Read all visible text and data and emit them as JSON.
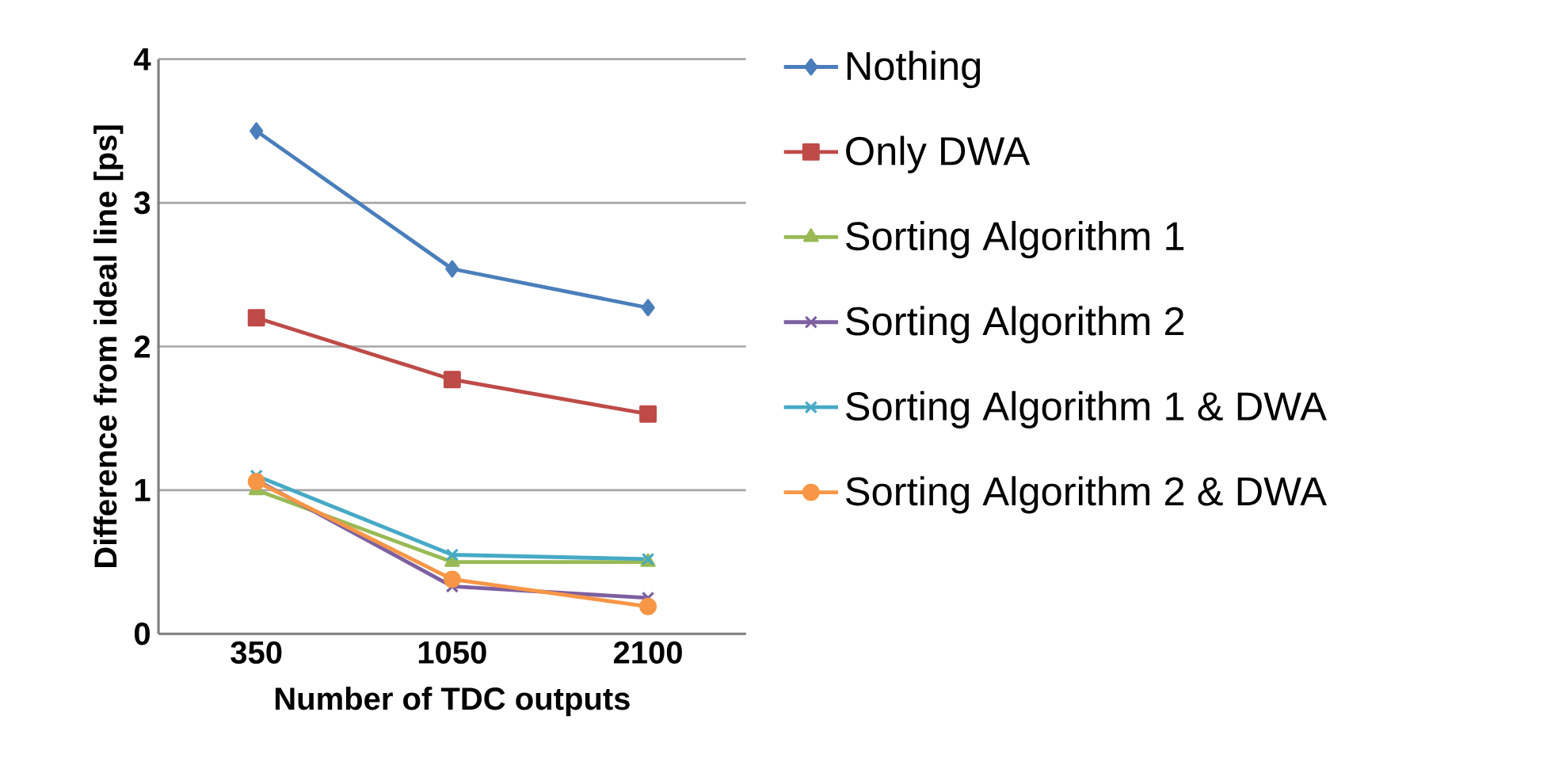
{
  "chart_data": {
    "type": "line",
    "xlabel": "Number of TDC outputs",
    "ylabel": "Difference from ideal line [ps]",
    "categories": [
      "350",
      "1050",
      "2100"
    ],
    "ylim": [
      0,
      4
    ],
    "yticks": [
      0,
      1,
      2,
      3,
      4
    ],
    "grid": "y",
    "legend": "right",
    "line_style": "solid",
    "series": [
      {
        "name": "Nothing",
        "color": "#4a7ebb",
        "marker": "diamond",
        "values": [
          3.5,
          2.54,
          2.27
        ]
      },
      {
        "name": "Only DWA",
        "color": "#be4b48",
        "marker": "square",
        "values": [
          2.2,
          1.77,
          1.53
        ]
      },
      {
        "name": "Sorting Algorithm 1",
        "color": "#98b954",
        "marker": "triangle",
        "values": [
          1.0,
          0.5,
          0.5
        ]
      },
      {
        "name": "Sorting Algorithm 2",
        "color": "#7d60a0",
        "marker": "cross",
        "values": [
          1.07,
          0.33,
          0.25
        ]
      },
      {
        "name": "Sorting Algorithm 1 & DWA",
        "color": "#46aac5",
        "marker": "cross",
        "values": [
          1.1,
          0.55,
          0.52
        ]
      },
      {
        "name": "Sorting Algorithm 2 & DWA",
        "color": "#f79646",
        "marker": "circle",
        "values": [
          1.06,
          0.38,
          0.19
        ]
      }
    ]
  }
}
